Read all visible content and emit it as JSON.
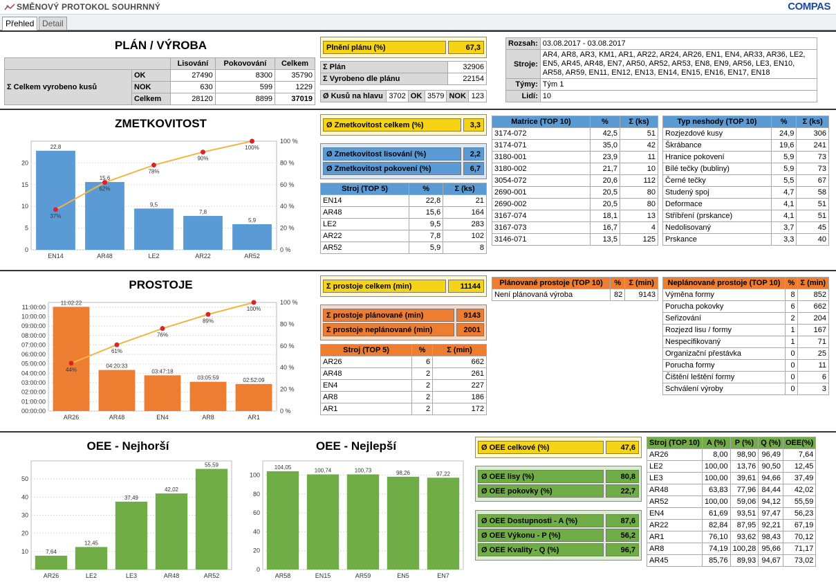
{
  "window": {
    "title": "SMĚNOVÝ PROTOKOL SOUHRNNÝ",
    "logo": "COMPAS"
  },
  "tabs": [
    {
      "label": "Přehled"
    },
    {
      "label": "Detail"
    }
  ],
  "colors": {
    "blue": "#5b9bd5",
    "orange": "#ed7d31",
    "green": "#70ad47",
    "yellow": "#f5d417",
    "line": "#f2b544",
    "dot": "#d9252a"
  },
  "plan": {
    "title": "PLÁN / VÝROBA",
    "table": {
      "cols": [
        "Lisování",
        "Pokovování",
        "Celkem"
      ],
      "side": "Σ Celkem vyrobeno kusů",
      "rows": [
        {
          "label": "OK",
          "v": [
            "27490",
            "8300",
            "35790"
          ]
        },
        {
          "label": "NOK",
          "v": [
            "630",
            "599",
            "1229"
          ]
        },
        {
          "label": "Celkem",
          "v": [
            "28120",
            "8899",
            "37019"
          ]
        }
      ]
    },
    "plneni": {
      "label": "Plnění plánu (%)",
      "value": "67,3"
    },
    "plan_rows": [
      {
        "label": "Σ Plán",
        "value": "32906"
      },
      {
        "label": "Σ Vyrobeno dle plánu",
        "value": "22154"
      }
    ],
    "kusy": {
      "label": "Ø Kusů na hlavu",
      "v1": "3702",
      "ok": "OK",
      "v2": "3579",
      "nok": "NOK",
      "v3": "123"
    },
    "info": {
      "rozsah_l": "Rozsah:",
      "rozsah": "03.08.2017 - 03.08.2017",
      "stroje_l": "Stroje:",
      "stroje": "AR4, AR8, AR3, KM1, AR1, AR22, AR24, AR26, EN1, EN4, AR33, AR36, LE2, EN5, AR45, AR48, EN7, AR50, AR52, AR53, EN8, EN9, AR56, LE3, EN10, AR58, AR59, EN11, EN12, EN13, EN14, EN15, EN16, EN17, EN18",
      "tymy_l": "Týmy:",
      "tymy": "Tým 1",
      "lidi_l": "Lidí:",
      "lidi": "10"
    }
  },
  "zmet": {
    "title": "ZMETKOVITOST",
    "kpi_main": {
      "label": "Ø Zmetkovitost celkem (%)",
      "value": "3,3"
    },
    "kpis": [
      {
        "label": "Ø Zmetkovitost lisování (%)",
        "value": "2,2"
      },
      {
        "label": "Ø Zmetkovitost pokovení (%)",
        "value": "6,7"
      }
    ],
    "stroj": {
      "cols": [
        "Stroj (TOP 5)",
        "%",
        "Σ (ks)"
      ],
      "rows": [
        [
          "EN14",
          "22,8",
          "21"
        ],
        [
          "AR48",
          "15,6",
          "164"
        ],
        [
          "LE2",
          "9,5",
          "283"
        ],
        [
          "AR22",
          "7,8",
          "102"
        ],
        [
          "AR52",
          "5,9",
          "8"
        ]
      ]
    },
    "matrice": {
      "cols": [
        "Matrice (TOP 10)",
        "%",
        "Σ (ks)"
      ],
      "rows": [
        [
          "3174-072",
          "42,5",
          "51"
        ],
        [
          "3174-071",
          "35,0",
          "42"
        ],
        [
          "3180-001",
          "23,9",
          "11"
        ],
        [
          "3180-002",
          "21,7",
          "10"
        ],
        [
          "3054-072",
          "20,6",
          "112"
        ],
        [
          "2690-001",
          "20,5",
          "80"
        ],
        [
          "2690-002",
          "20,5",
          "80"
        ],
        [
          "3167-074",
          "18,1",
          "13"
        ],
        [
          "3167-073",
          "16,7",
          "4"
        ],
        [
          "3146-071",
          "13,5",
          "125"
        ]
      ]
    },
    "typ": {
      "cols": [
        "Typ neshody (TOP 10)",
        "%",
        "Σ (ks)"
      ],
      "rows": [
        [
          "Rozjezdové kusy",
          "24,9",
          "306"
        ],
        [
          "Škrábance",
          "19,6",
          "241"
        ],
        [
          "Hranice pokovení",
          "5,9",
          "73"
        ],
        [
          "Bílé tečky (bubliny)",
          "5,9",
          "73"
        ],
        [
          "Černé tečky",
          "5,5",
          "67"
        ],
        [
          "Studený spoj",
          "4,7",
          "58"
        ],
        [
          "Deformace",
          "4,1",
          "51"
        ],
        [
          "Stříbření (prskance)",
          "4,1",
          "51"
        ],
        [
          "Nedolisovaný",
          "3,7",
          "45"
        ],
        [
          "Prskance",
          "3,3",
          "40"
        ]
      ]
    }
  },
  "prost": {
    "title": "PROSTOJE",
    "kpi_main": {
      "label": "Σ prostoje celkem (min)",
      "value": "11144"
    },
    "kpis": [
      {
        "label": "Σ prostoje plánované (min)",
        "value": "9143"
      },
      {
        "label": "Σ prostoje neplánované (min)",
        "value": "2001"
      }
    ],
    "stroj": {
      "cols": [
        "Stroj (TOP 5)",
        "%",
        "Σ (min)"
      ],
      "rows": [
        [
          "AR26",
          "6",
          "662"
        ],
        [
          "AR48",
          "2",
          "261"
        ],
        [
          "EN4",
          "2",
          "227"
        ],
        [
          "AR8",
          "2",
          "186"
        ],
        [
          "AR1",
          "2",
          "172"
        ]
      ]
    },
    "plan": {
      "cols": [
        "Plánované prostoje (TOP 10)",
        "%",
        "Σ (min)"
      ],
      "rows": [
        [
          "Není plánovaná výroba",
          "82",
          "9143"
        ]
      ]
    },
    "neplan": {
      "cols": [
        "Neplánované prostoje (TOP 10)",
        "%",
        "Σ (min)"
      ],
      "rows": [
        [
          "Výměna formy",
          "8",
          "852"
        ],
        [
          "Porucha pokovky",
          "6",
          "662"
        ],
        [
          "Seřizování",
          "2",
          "204"
        ],
        [
          "Rozjezd lisu / formy",
          "1",
          "167"
        ],
        [
          "Nespecifikovaný",
          "1",
          "71"
        ],
        [
          "Organizační přestávka",
          "0",
          "25"
        ],
        [
          "Porucha formy",
          "0",
          "11"
        ],
        [
          "Čištění leštění formy",
          "0",
          "6"
        ],
        [
          "Schválení výroby",
          "0",
          "3"
        ]
      ]
    }
  },
  "oee": {
    "title_worst": "OEE - Nejhorší",
    "title_best": "OEE - Nejlepší",
    "kpi_main": {
      "label": "Ø OEE celkové (%)",
      "value": "47,6"
    },
    "kpis1": [
      {
        "label": "Ø OEE lisy (%)",
        "value": "80,8"
      },
      {
        "label": "Ø OEE pokovky (%)",
        "value": "22,7"
      }
    ],
    "kpis2": [
      {
        "label": "Ø OEE Dostupnosti - A (%)",
        "value": "87,6"
      },
      {
        "label": "Ø OEE Výkonu - P (%)",
        "value": "56,2"
      },
      {
        "label": "Ø OEE Kvality - Q (%)",
        "value": "96,7"
      }
    ],
    "table": {
      "cols": [
        "Stroj (TOP 10)",
        "A (%)",
        "P (%)",
        "Q (%)",
        "OEE(%)"
      ],
      "rows": [
        [
          "AR26",
          "8,00",
          "98,90",
          "96,49",
          "7,64"
        ],
        [
          "LE2",
          "100,00",
          "13,76",
          "90,50",
          "12,45"
        ],
        [
          "LE3",
          "100,00",
          "39,61",
          "94,66",
          "37,49"
        ],
        [
          "AR48",
          "63,83",
          "77,96",
          "84,44",
          "42,02"
        ],
        [
          "AR52",
          "100,00",
          "59,06",
          "94,12",
          "55,59"
        ],
        [
          "EN4",
          "61,69",
          "93,51",
          "97,47",
          "56,23"
        ],
        [
          "AR22",
          "82,84",
          "87,95",
          "92,21",
          "67,19"
        ],
        [
          "AR1",
          "76,10",
          "93,62",
          "98,43",
          "70,12"
        ],
        [
          "AR8",
          "74,19",
          "100,28",
          "95,66",
          "71,17"
        ],
        [
          "AR45",
          "85,76",
          "89,93",
          "94,67",
          "73,02"
        ]
      ]
    }
  },
  "chart_data": [
    {
      "type": "bar",
      "categories": [
        "EN14",
        "AR48",
        "LE2",
        "AR22",
        "AR52"
      ],
      "values": [
        22.8,
        15.6,
        9.5,
        7.8,
        5.9
      ],
      "labels": [
        "22,8",
        "15,6",
        "9,5",
        "7,8",
        "5,9"
      ],
      "ylim": [
        0,
        25
      ],
      "yticks": [
        "0",
        "5",
        "10",
        "15",
        "20"
      ],
      "y2ticks": [
        "0 %",
        "20 %",
        "40 %",
        "60 %",
        "80 %",
        "100 %"
      ],
      "pareto": [
        37,
        62,
        78,
        90,
        100
      ],
      "pareto_labels": [
        "37%",
        "62%",
        "78%",
        "90%",
        "100%"
      ],
      "color": "#5b9bd5"
    },
    {
      "type": "bar",
      "categories": [
        "AR26",
        "AR48",
        "EN4",
        "AR8",
        "AR1"
      ],
      "values": [
        662,
        261,
        227,
        186,
        172
      ],
      "labels": [
        "11:02:22",
        "04:20:33",
        "03:47:18",
        "03:05:59",
        "02:52:09"
      ],
      "ylim": [
        0,
        690
      ],
      "yticks": [
        "00:00:00",
        "01:00:00",
        "02:00:00",
        "03:00:00",
        "04:00:00",
        "05:00:00",
        "06:00:00",
        "07:00:00",
        "08:00:00",
        "09:00:00",
        "10:00:00",
        "11:00:00"
      ],
      "y2ticks": [
        "0 %",
        "20 %",
        "40 %",
        "60 %",
        "80 %",
        "100 %"
      ],
      "pareto": [
        44,
        61,
        76,
        89,
        100
      ],
      "pareto_labels": [
        "44%",
        "61%",
        "76%",
        "89%",
        "100%"
      ],
      "color": "#ed7d31"
    },
    {
      "type": "bar",
      "categories": [
        "AR26",
        "LE2",
        "LE3",
        "AR48",
        "AR52"
      ],
      "values": [
        7.64,
        12.45,
        37.49,
        42.02,
        55.59
      ],
      "labels": [
        "7,64",
        "12,45",
        "37,49",
        "42,02",
        "55,59"
      ],
      "ylim": [
        0,
        60
      ],
      "yticks": [
        "10",
        "20",
        "30",
        "40",
        "50"
      ],
      "color": "#70ad47"
    },
    {
      "type": "bar",
      "categories": [
        "AR58",
        "EN15",
        "AR59",
        "EN5",
        "EN7"
      ],
      "values": [
        104.05,
        100.74,
        100.73,
        98.26,
        97.22
      ],
      "labels": [
        "104,05",
        "100,74",
        "100,73",
        "98,26",
        "97,22"
      ],
      "ylim": [
        0,
        115
      ],
      "yticks": [
        "0",
        "20",
        "40",
        "60",
        "80",
        "100"
      ],
      "color": "#70ad47"
    }
  ]
}
